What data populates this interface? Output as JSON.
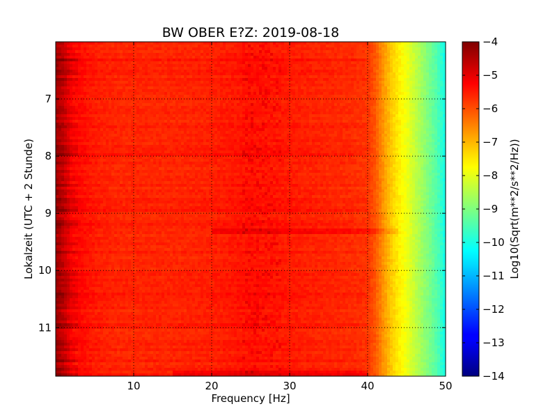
{
  "chart_data": {
    "type": "heatmap",
    "title": "BW OBER E?Z: 2019-08-18",
    "xlabel": "Frequency [Hz]",
    "ylabel": "Lokalzeit (UTC + 2 Stunde)",
    "xlim": [
      0,
      50
    ],
    "ylim": [
      11.85,
      6.0
    ],
    "x_ticks": [
      10,
      20,
      30,
      40,
      50
    ],
    "x_tick_labels": [
      "10",
      "20",
      "30",
      "40",
      "50"
    ],
    "y_ticks": [
      7,
      8,
      9,
      10,
      11
    ],
    "y_tick_labels": [
      "7",
      "8",
      "9",
      "10",
      "11"
    ],
    "grid": true,
    "colorbar": {
      "label": "Log10(Sqrt(m**2/s**2/Hz))",
      "min": -14,
      "max": -4,
      "ticks": [
        -4,
        -5,
        -6,
        -7,
        -8,
        -9,
        -10,
        -11,
        -12,
        -13,
        -14
      ],
      "tick_labels": [
        "−4",
        "−5",
        "−6",
        "−7",
        "−8",
        "−9",
        "−10",
        "−11",
        "−12",
        "−13",
        "−14"
      ],
      "colormap": "jet"
    },
    "spectrum_profile": {
      "frequency_hz": [
        0,
        1,
        2,
        3,
        5,
        8,
        10,
        15,
        20,
        25,
        30,
        35,
        38,
        40,
        41,
        42,
        43,
        44,
        45,
        46,
        47,
        48,
        49,
        50
      ],
      "value": [
        -4.3,
        -4.6,
        -5.1,
        -5.3,
        -5.5,
        -5.6,
        -5.6,
        -5.6,
        -5.55,
        -5.4,
        -5.5,
        -5.6,
        -5.65,
        -5.75,
        -6.1,
        -6.7,
        -7.2,
        -7.6,
        -7.9,
        -8.3,
        -8.7,
        -9.1,
        -9.5,
        -10.1
      ]
    },
    "notable_features": {
      "low_frequency_band_hz": [
        0,
        2
      ],
      "rolloff_start_hz": 40,
      "highlight_band_hz": [
        24,
        29
      ]
    }
  }
}
